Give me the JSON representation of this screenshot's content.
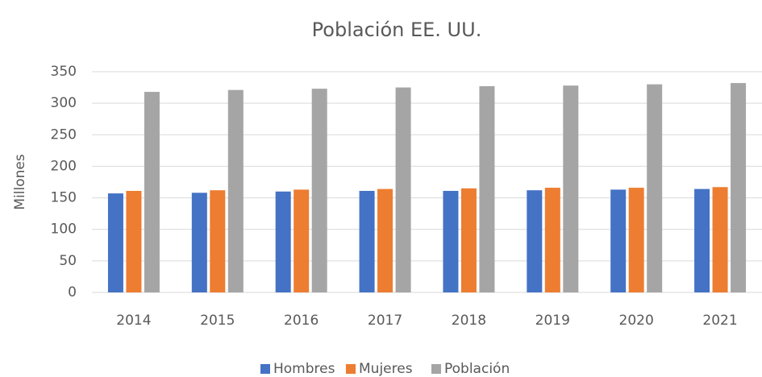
{
  "chart_data": {
    "type": "bar",
    "title": "Población EE. UU.",
    "y_label": "Millones",
    "categories": [
      "2014",
      "2015",
      "2016",
      "2017",
      "2018",
      "2019",
      "2020",
      "2021"
    ],
    "series": [
      {
        "name": "Hombres",
        "color": "#4472c4",
        "values": [
          157,
          158,
          160,
          161,
          161,
          162,
          163,
          164
        ]
      },
      {
        "name": "Mujeres",
        "color": "#ed7d31",
        "values": [
          161,
          162,
          163,
          164,
          165,
          166,
          166,
          167
        ]
      },
      {
        "name": "Población",
        "color": "#a5a5a5",
        "values": [
          318,
          321,
          323,
          325,
          327,
          328,
          330,
          332
        ]
      }
    ],
    "ylim": [
      0,
      350
    ],
    "yticks": [
      0,
      50,
      100,
      150,
      200,
      250,
      300,
      350
    ],
    "grid": true,
    "legend": "bottom"
  }
}
